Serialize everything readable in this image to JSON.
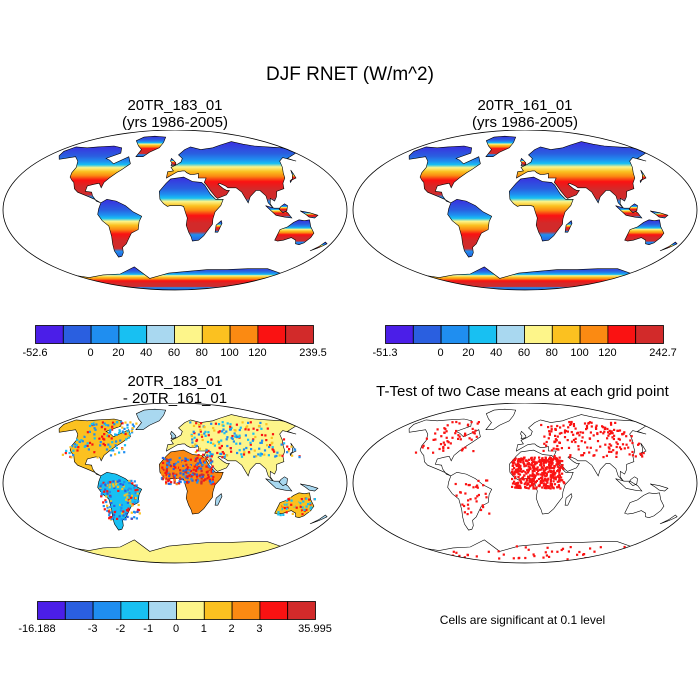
{
  "figure": {
    "title": "DJF RNET (W/m^2)"
  },
  "panels": [
    {
      "title_lines": [
        "20TR_183_01",
        "(yrs 1986-2005)"
      ],
      "colorbar": {
        "colors": [
          "#4b1ee8",
          "#2a5fe0",
          "#1f8ef0",
          "#18c0f2",
          "#a9d8f0",
          "#fdf58a",
          "#fbc120",
          "#fb8a12",
          "#fa1212",
          "#d22a2a"
        ],
        "labels": [
          "-52.6",
          "0",
          "20",
          "40",
          "60",
          "80",
          "100",
          "120",
          "239.5"
        ]
      }
    },
    {
      "title_lines": [
        "20TR_161_01",
        "(yrs 1986-2005)"
      ],
      "colorbar": {
        "colors": [
          "#4b1ee8",
          "#2a5fe0",
          "#1f8ef0",
          "#18c0f2",
          "#a9d8f0",
          "#fdf58a",
          "#fbc120",
          "#fb8a12",
          "#fa1212",
          "#d22a2a"
        ],
        "labels": [
          "-51.3",
          "0",
          "20",
          "40",
          "60",
          "80",
          "100",
          "120",
          "242.7"
        ]
      }
    },
    {
      "title_lines": [
        "20TR_183_01",
        "- 20TR_161_01"
      ],
      "colorbar": {
        "colors": [
          "#4b1ee8",
          "#2a5fe0",
          "#1f8ef0",
          "#18c0f2",
          "#a9d8f0",
          "#fdf58a",
          "#fbc120",
          "#fb8a12",
          "#fa1212",
          "#d22a2a"
        ],
        "labels": [
          "-16.188",
          "-3",
          "-2",
          "-1",
          "0",
          "1",
          "2",
          "3",
          "35.995"
        ]
      }
    },
    {
      "title_lines": [
        "T-Test of two Case means at each grid point"
      ],
      "note": "Cells are significant at 0.1 level"
    }
  ]
}
